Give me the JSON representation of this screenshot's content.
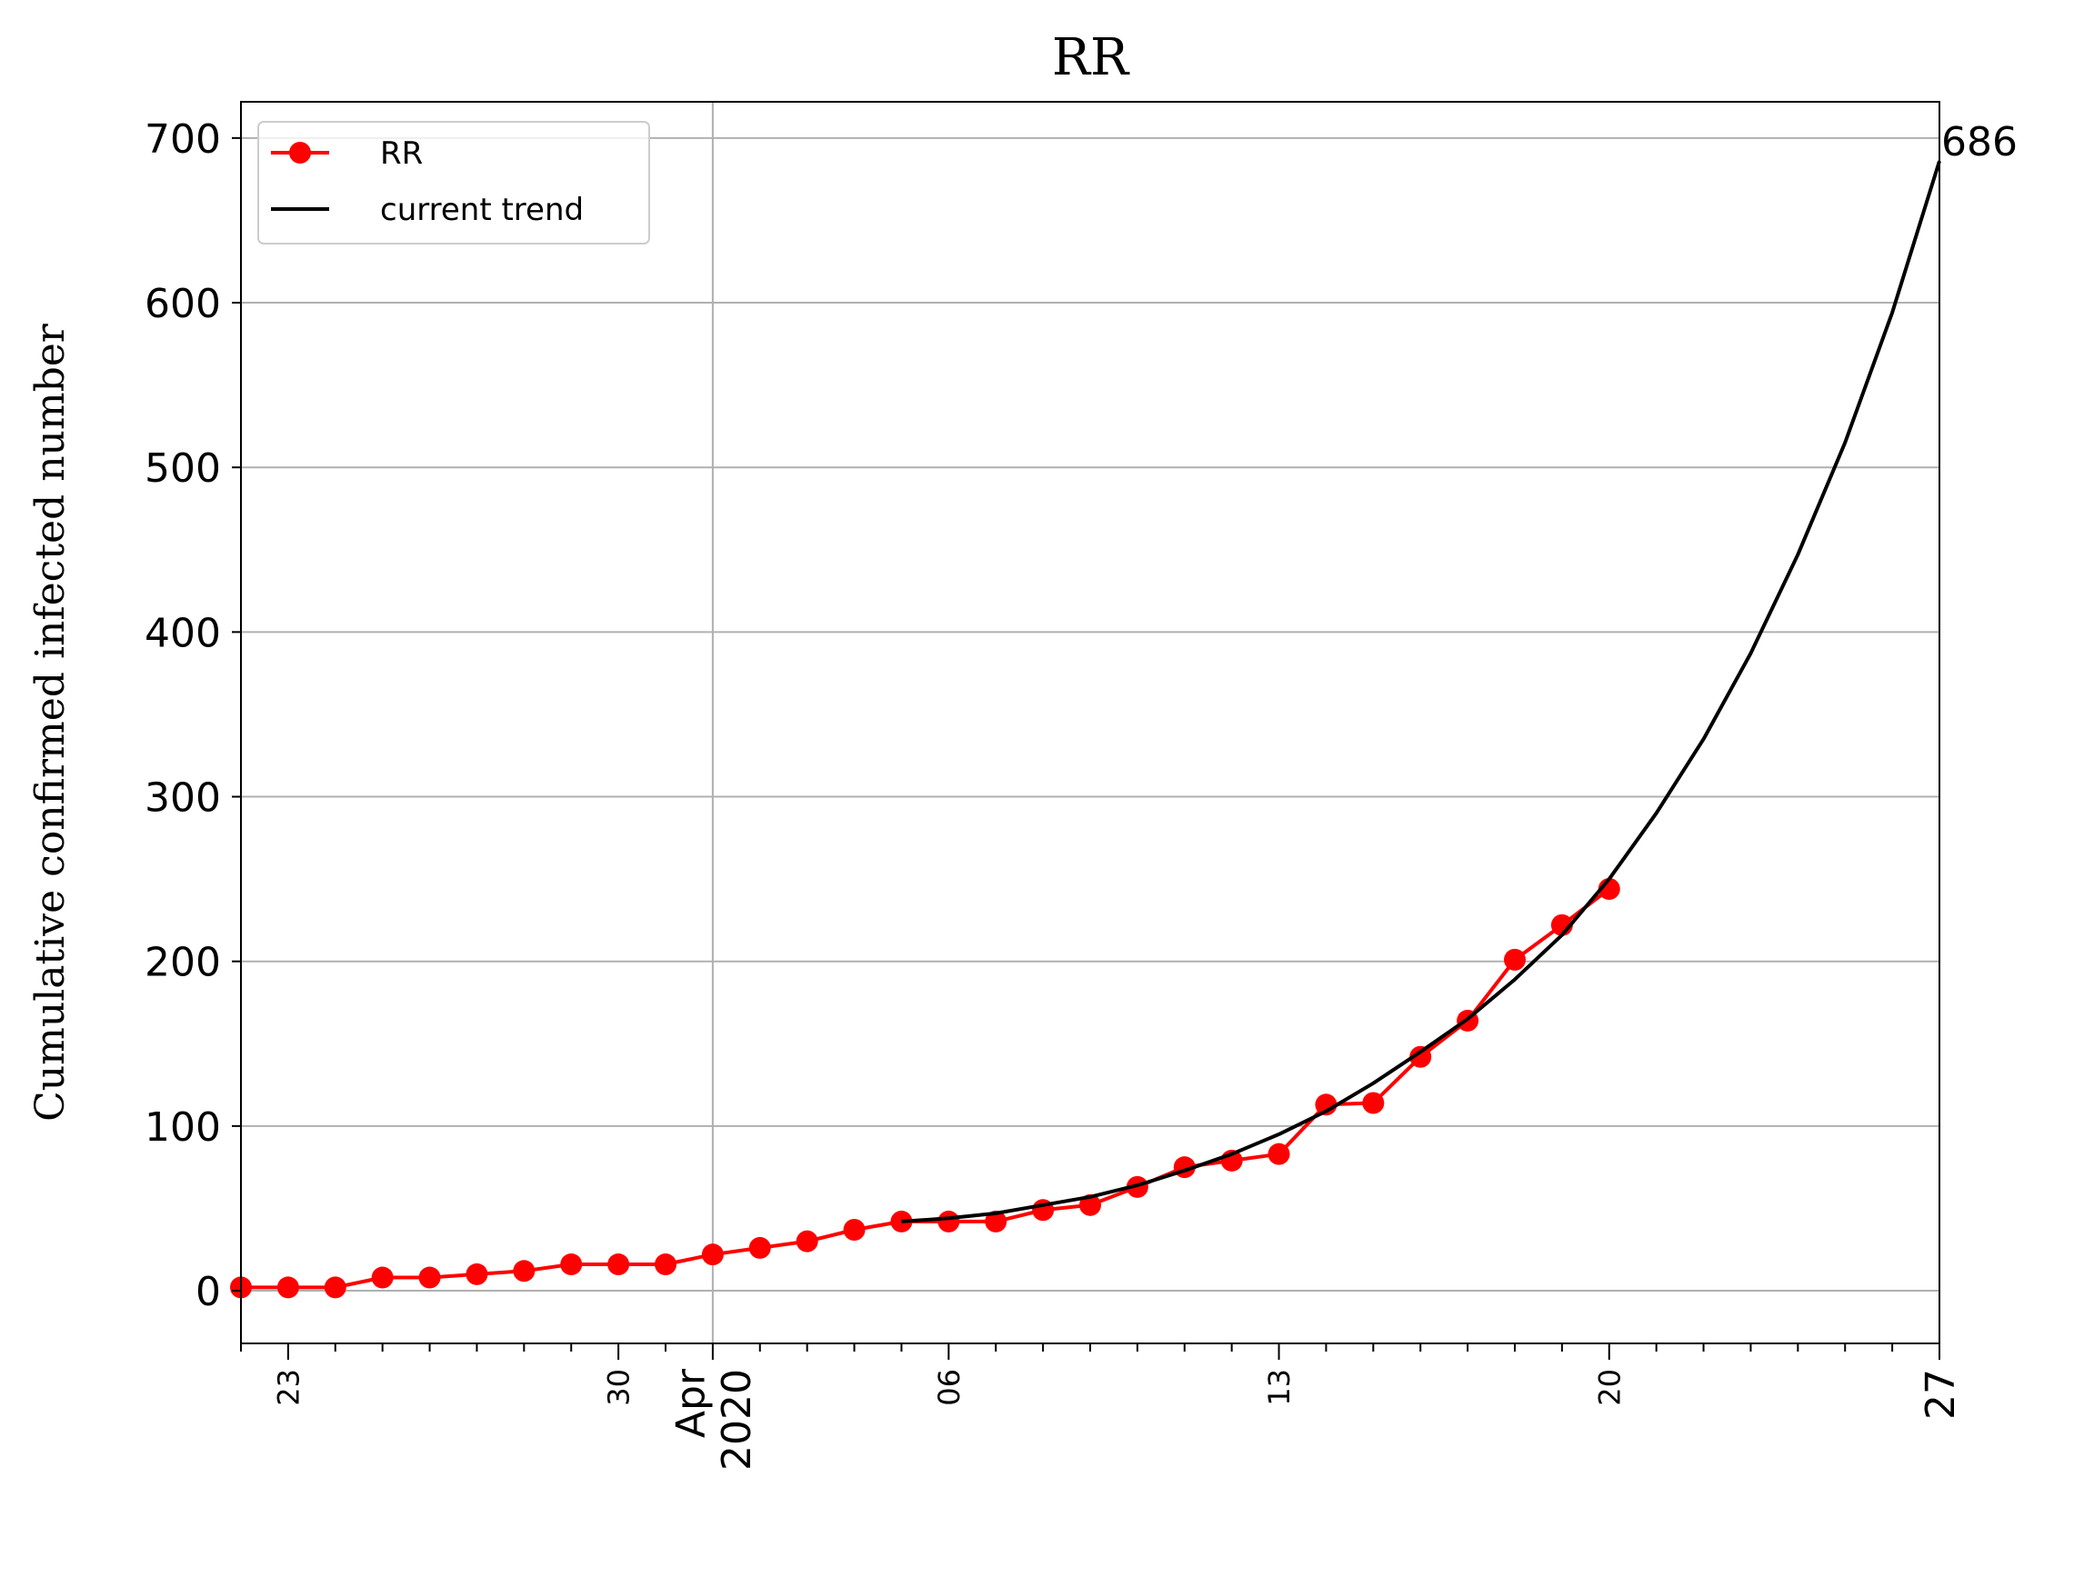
{
  "chart_data": {
    "type": "line",
    "title": "RR",
    "xlabel": "",
    "ylabel": "Cumulative confirmed infected number",
    "xlim": [
      "2020-03-22",
      "2020-04-27"
    ],
    "ylim": [
      -32,
      722
    ],
    "grid": true,
    "legend_position": "upper-left",
    "x_ticks": [
      {
        "date": "2020-03-23",
        "label": "23",
        "size": "small"
      },
      {
        "date": "2020-03-30",
        "label": "30",
        "size": "small"
      },
      {
        "date": "2020-04-01",
        "label": "Apr\n2020",
        "size": "large"
      },
      {
        "date": "2020-04-06",
        "label": "06",
        "size": "small"
      },
      {
        "date": "2020-04-13",
        "label": "13",
        "size": "small"
      },
      {
        "date": "2020-04-20",
        "label": "20",
        "size": "small"
      },
      {
        "date": "2020-04-27",
        "label": "27",
        "size": "large"
      }
    ],
    "y_ticks": [
      0,
      100,
      200,
      300,
      400,
      500,
      600,
      700
    ],
    "series": [
      {
        "name": "RR",
        "color": "#ff0000",
        "marker": "circle",
        "points": [
          [
            "2020-03-22",
            2
          ],
          [
            "2020-03-23",
            2
          ],
          [
            "2020-03-24",
            2
          ],
          [
            "2020-03-25",
            8
          ],
          [
            "2020-03-26",
            8
          ],
          [
            "2020-03-27",
            10
          ],
          [
            "2020-03-28",
            12
          ],
          [
            "2020-03-29",
            16
          ],
          [
            "2020-03-30",
            16
          ],
          [
            "2020-03-31",
            16
          ],
          [
            "2020-04-01",
            22
          ],
          [
            "2020-04-02",
            26
          ],
          [
            "2020-04-03",
            30
          ],
          [
            "2020-04-04",
            37
          ],
          [
            "2020-04-05",
            42
          ],
          [
            "2020-04-06",
            42
          ],
          [
            "2020-04-07",
            42
          ],
          [
            "2020-04-08",
            49
          ],
          [
            "2020-04-09",
            52
          ],
          [
            "2020-04-10",
            63
          ],
          [
            "2020-04-11",
            75
          ],
          [
            "2020-04-12",
            79
          ],
          [
            "2020-04-13",
            83
          ],
          [
            "2020-04-14",
            113
          ],
          [
            "2020-04-15",
            114
          ],
          [
            "2020-04-16",
            142
          ],
          [
            "2020-04-17",
            164
          ],
          [
            "2020-04-18",
            201
          ],
          [
            "2020-04-19",
            222
          ],
          [
            "2020-04-20",
            244
          ]
        ]
      },
      {
        "name": "current trend",
        "color": "#000000",
        "marker": "none",
        "points": [
          [
            "2020-04-05",
            42
          ],
          [
            "2020-04-06",
            44
          ],
          [
            "2020-04-07",
            47
          ],
          [
            "2020-04-08",
            52
          ],
          [
            "2020-04-09",
            57
          ],
          [
            "2020-04-10",
            64
          ],
          [
            "2020-04-11",
            73
          ],
          [
            "2020-04-12",
            83
          ],
          [
            "2020-04-13",
            95
          ],
          [
            "2020-04-14",
            109
          ],
          [
            "2020-04-15",
            126
          ],
          [
            "2020-04-16",
            145
          ],
          [
            "2020-04-17",
            165
          ],
          [
            "2020-04-18",
            189
          ],
          [
            "2020-04-19",
            216
          ],
          [
            "2020-04-20",
            250
          ],
          [
            "2020-04-21",
            290
          ],
          [
            "2020-04-22",
            335
          ],
          [
            "2020-04-23",
            387
          ],
          [
            "2020-04-24",
            447
          ],
          [
            "2020-04-25",
            515
          ],
          [
            "2020-04-26",
            594
          ],
          [
            "2020-04-27",
            686
          ]
        ]
      }
    ],
    "annotations": [
      {
        "text": "686",
        "date": "2020-04-27",
        "value": 686
      }
    ]
  }
}
